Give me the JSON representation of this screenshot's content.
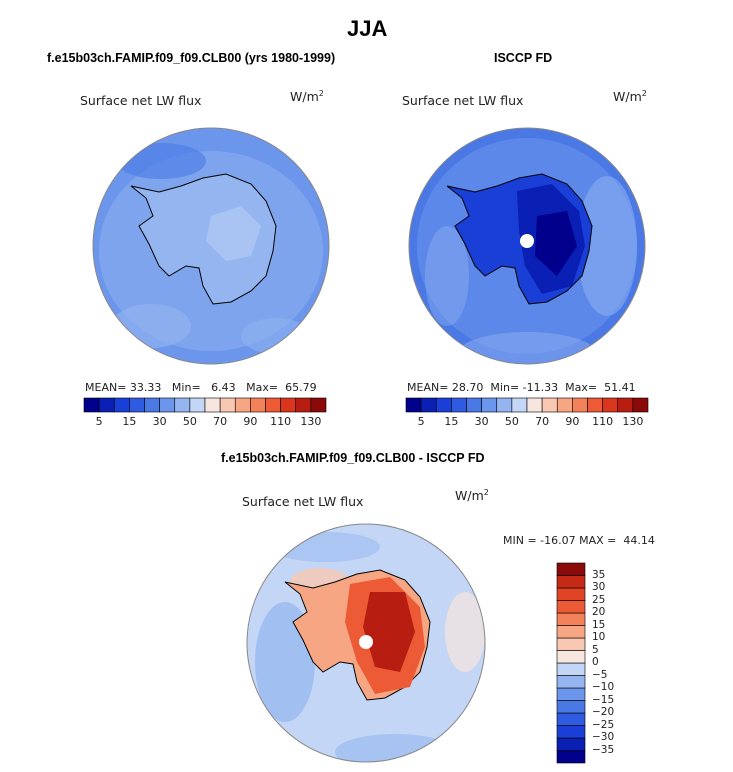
{
  "page_title": "JJA",
  "panels": [
    {
      "id": "model",
      "case_title": "f.e15b03ch.FAMIP.f09_f09.CLB00 (yrs 1980-1999)",
      "variable_label": "Surface net LW flux",
      "units": "W/m",
      "units_exp": "2",
      "stats": {
        "mean_label": "MEAN=",
        "mean": "33.33",
        "min_label": "Min=",
        "min": "6.43",
        "max_label": "Max=",
        "max": "65.79"
      }
    },
    {
      "id": "obs",
      "case_title": "ISCCP FD",
      "variable_label": "Surface net LW flux",
      "units": "W/m",
      "units_exp": "2",
      "stats": {
        "mean_label": "MEAN=",
        "mean": "28.70",
        "min_label": "Min=",
        "min": "-11.33",
        "max_label": "Max=",
        "max": "51.41"
      }
    }
  ],
  "diff_panel": {
    "case_title": "f.e15b03ch.FAMIP.f09_f09.CLB00 - ISCCP FD",
    "variable_label": "Surface net LW flux",
    "units": "W/m",
    "units_exp": "2",
    "stats_text": "MIN = -16.07 MAX =  44.14"
  },
  "colorbar_abs": {
    "colors": [
      "#00008c",
      "#0a1fb4",
      "#1a3fd6",
      "#2f5be0",
      "#4a79e6",
      "#6b96ec",
      "#94b5f0",
      "#c3d6f5",
      "#f7e6e0",
      "#f9c8b2",
      "#f7a684",
      "#f3825a",
      "#ec5b35",
      "#d9361d",
      "#b81d12",
      "#8a0a0a"
    ],
    "tick_labels": [
      "5",
      "15",
      "30",
      "50",
      "70",
      "90",
      "110",
      "130"
    ]
  },
  "colorbar_diff": {
    "colors": [
      "#00008c",
      "#0a1fb4",
      "#1a3fd6",
      "#2f5be0",
      "#4a79e6",
      "#6b96ec",
      "#94b5f0",
      "#c3d6f5",
      "#f7e6e0",
      "#f9c8b2",
      "#f7a684",
      "#f3825a",
      "#ec5b35",
      "#e14424",
      "#c52a17",
      "#8a0a0a"
    ],
    "tick_labels": [
      "35",
      "30",
      "25",
      "20",
      "15",
      "10",
      "5",
      "0",
      "−5",
      "−10",
      "−15",
      "−20",
      "−25",
      "−30",
      "−35"
    ]
  },
  "map_colors": {
    "ocean_model": "#6b96ec",
    "ocean_obs": "#4a79e6",
    "ocean_diff": "#c3d6f5",
    "land_model": "#94b5f0",
    "land_obs_inner": "#0a1fb4",
    "land_diff_inner": "#b81d12",
    "coast": "#000000",
    "pole_marker": "#ffffff"
  }
}
